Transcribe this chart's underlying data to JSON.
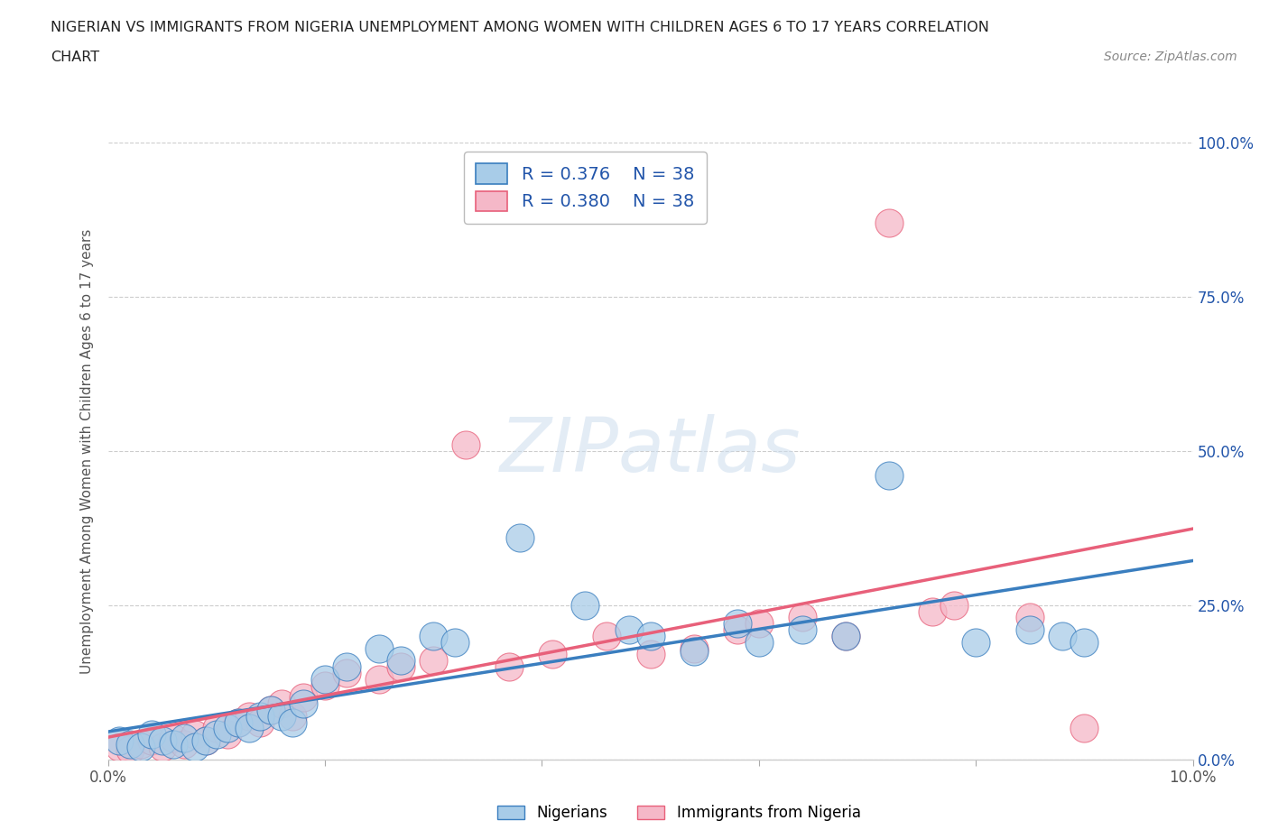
{
  "title_line1": "NIGERIAN VS IMMIGRANTS FROM NIGERIA UNEMPLOYMENT AMONG WOMEN WITH CHILDREN AGES 6 TO 17 YEARS CORRELATION",
  "title_line2": "CHART",
  "source": "Source: ZipAtlas.com",
  "ylabel": "Unemployment Among Women with Children Ages 6 to 17 years",
  "xlim": [
    0.0,
    0.1
  ],
  "ylim": [
    0.0,
    1.0
  ],
  "xticks": [
    0.0,
    0.02,
    0.04,
    0.06,
    0.08,
    0.1
  ],
  "xtick_labels": [
    "0.0%",
    "",
    "",
    "",
    "",
    "10.0%"
  ],
  "yticks": [
    0.0,
    0.25,
    0.5,
    0.75,
    1.0
  ],
  "ytick_labels": [
    "0.0%",
    "25.0%",
    "50.0%",
    "75.0%",
    "100.0%"
  ],
  "legend1_R": "0.376",
  "legend1_N": "38",
  "legend2_R": "0.380",
  "legend2_N": "38",
  "color_blue": "#a8cce8",
  "color_pink": "#f5b8c8",
  "line_color_blue": "#3a7ebf",
  "line_color_pink": "#e8607a",
  "legend_text_color": "#2255aa",
  "background_color": "#ffffff",
  "nigerians_x": [
    0.001,
    0.002,
    0.003,
    0.004,
    0.005,
    0.006,
    0.007,
    0.008,
    0.009,
    0.01,
    0.011,
    0.012,
    0.013,
    0.014,
    0.015,
    0.016,
    0.017,
    0.018,
    0.02,
    0.022,
    0.025,
    0.027,
    0.03,
    0.032,
    0.038,
    0.044,
    0.048,
    0.05,
    0.054,
    0.058,
    0.06,
    0.064,
    0.068,
    0.072,
    0.08,
    0.085,
    0.088,
    0.09
  ],
  "nigerians_y": [
    0.03,
    0.025,
    0.02,
    0.04,
    0.03,
    0.025,
    0.035,
    0.02,
    0.03,
    0.04,
    0.05,
    0.06,
    0.05,
    0.07,
    0.08,
    0.07,
    0.06,
    0.09,
    0.13,
    0.15,
    0.18,
    0.16,
    0.2,
    0.19,
    0.36,
    0.25,
    0.21,
    0.2,
    0.175,
    0.22,
    0.19,
    0.21,
    0.2,
    0.46,
    0.19,
    0.21,
    0.2,
    0.19
  ],
  "immigrants_x": [
    0.001,
    0.002,
    0.003,
    0.004,
    0.005,
    0.006,
    0.007,
    0.008,
    0.009,
    0.01,
    0.011,
    0.012,
    0.013,
    0.014,
    0.015,
    0.016,
    0.017,
    0.018,
    0.02,
    0.022,
    0.025,
    0.027,
    0.03,
    0.033,
    0.037,
    0.041,
    0.046,
    0.05,
    0.054,
    0.058,
    0.06,
    0.064,
    0.068,
    0.072,
    0.076,
    0.078,
    0.085,
    0.09
  ],
  "immigrants_y": [
    0.02,
    0.015,
    0.025,
    0.03,
    0.02,
    0.035,
    0.025,
    0.04,
    0.03,
    0.05,
    0.04,
    0.06,
    0.07,
    0.06,
    0.08,
    0.09,
    0.07,
    0.1,
    0.12,
    0.14,
    0.13,
    0.15,
    0.16,
    0.51,
    0.15,
    0.17,
    0.2,
    0.17,
    0.18,
    0.21,
    0.22,
    0.23,
    0.2,
    0.87,
    0.24,
    0.25,
    0.23,
    0.05
  ]
}
